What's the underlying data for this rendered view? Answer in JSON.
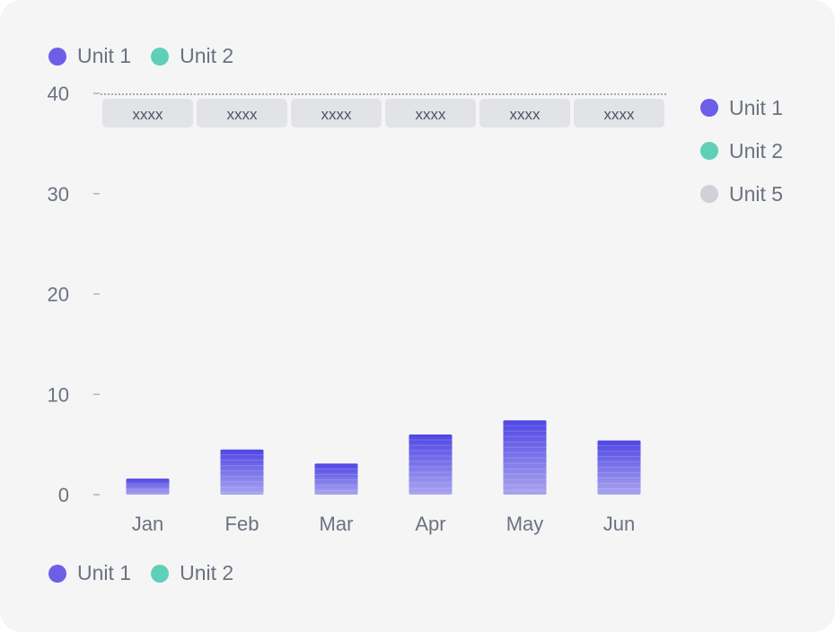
{
  "chart_data": {
    "type": "bar",
    "categories": [
      "Jan",
      "Feb",
      "Mar",
      "Apr",
      "May",
      "Jun"
    ],
    "values": [
      1.6,
      4.5,
      3.1,
      6.0,
      7.4,
      5.4
    ],
    "ylim": [
      0,
      40
    ],
    "yticks": [
      0,
      10,
      20,
      30,
      40
    ],
    "bar_color_top": "#4f46e5",
    "bar_color_bottom": "#a8a4ee",
    "annotations": [
      "xxxx",
      "xxxx",
      "xxxx",
      "xxxx",
      "xxxx",
      "xxxx"
    ],
    "legend_top": [
      {
        "label": "Unit 1",
        "color": "#6d5ee8"
      },
      {
        "label": "Unit 2",
        "color": "#5fd0b8"
      }
    ],
    "legend_right": [
      {
        "label": "Unit 1",
        "color": "#6d5ee8"
      },
      {
        "label": "Unit 2",
        "color": "#5fd0b8"
      },
      {
        "label": "Unit 5",
        "color": "#cfd1d6"
      }
    ],
    "legend_bottom": [
      {
        "label": "Unit 1",
        "color": "#6d5ee8"
      },
      {
        "label": "Unit 2",
        "color": "#5fd0b8"
      }
    ]
  }
}
